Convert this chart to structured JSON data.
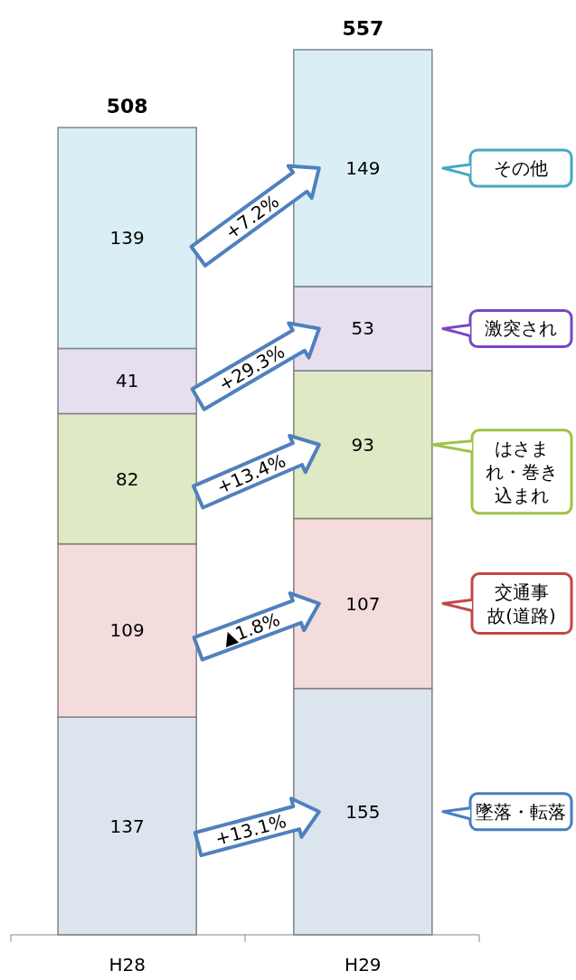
{
  "chart_data": {
    "type": "bar",
    "stacked": true,
    "categories": [
      "H28",
      "H29"
    ],
    "series": [
      {
        "name": "墜落・転落",
        "color": "#dce4ee",
        "values": [
          137,
          155
        ]
      },
      {
        "name": "交通事故(道路)",
        "color": "#f4dcdc",
        "values": [
          109,
          107
        ]
      },
      {
        "name": "はさまれ・巻き込まれ",
        "color": "#dfe9c6",
        "values": [
          82,
          93
        ]
      },
      {
        "name": "激突され",
        "color": "#e6dff0",
        "values": [
          41,
          53
        ]
      },
      {
        "name": "その他",
        "color": "#d9eff5",
        "values": [
          139,
          149
        ]
      }
    ],
    "data_labels": true,
    "totals": [
      "508",
      "557"
    ],
    "legend": "right",
    "annotations": [
      "+13.1%",
      "▲1.8%",
      "+13.4%",
      "+29.3%",
      "+7.2%"
    ]
  }
}
